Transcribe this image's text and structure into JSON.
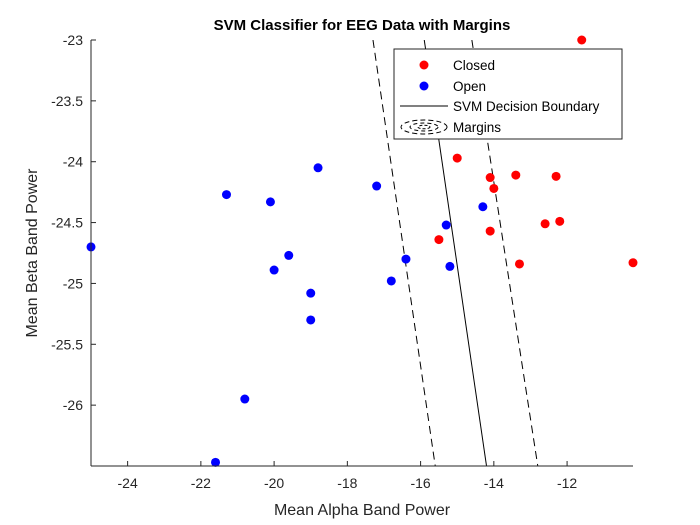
{
  "chart_data": {
    "type": "scatter",
    "title": "SVM Classifier for EEG Data with Margins",
    "xlabel": "Mean Alpha Band Power",
    "ylabel": "Mean Beta Band Power",
    "xlim": [
      -25,
      -10.2
    ],
    "ylim": [
      -26.5,
      -23
    ],
    "xticks": [
      -24,
      -22,
      -20,
      -18,
      -16,
      -14,
      -12
    ],
    "yticks": [
      -23,
      -23.5,
      -24,
      -24.5,
      -25,
      -25.5,
      -26
    ],
    "grid": false,
    "legend_position": "top-right",
    "series": [
      {
        "name": "Closed",
        "color": "#ff0000",
        "marker": "dot",
        "points": [
          [
            -11.6,
            -23.0
          ],
          [
            -15.0,
            -23.97
          ],
          [
            -14.1,
            -24.13
          ],
          [
            -14.0,
            -24.22
          ],
          [
            -13.4,
            -24.11
          ],
          [
            -12.3,
            -24.12
          ],
          [
            -12.2,
            -24.49
          ],
          [
            -12.6,
            -24.51
          ],
          [
            -14.1,
            -24.57
          ],
          [
            -15.5,
            -24.64
          ],
          [
            -13.3,
            -24.84
          ],
          [
            -10.2,
            -24.83
          ]
        ]
      },
      {
        "name": "Open",
        "color": "#0000ff",
        "marker": "dot",
        "points": [
          [
            -25.0,
            -24.7
          ],
          [
            -21.3,
            -24.27
          ],
          [
            -20.1,
            -24.33
          ],
          [
            -18.8,
            -24.05
          ],
          [
            -17.2,
            -24.2
          ],
          [
            -19.6,
            -24.77
          ],
          [
            -20.0,
            -24.89
          ],
          [
            -19.0,
            -25.08
          ],
          [
            -19.0,
            -25.3
          ],
          [
            -16.4,
            -24.8
          ],
          [
            -16.8,
            -24.98
          ],
          [
            -15.3,
            -24.52
          ],
          [
            -15.2,
            -24.86
          ],
          [
            -14.3,
            -24.37
          ],
          [
            -20.8,
            -25.95
          ],
          [
            -21.6,
            -26.47
          ]
        ]
      },
      {
        "name": "SVM Decision Boundary",
        "color": "#000000",
        "style": "solid",
        "points": [
          [
            -15.9,
            -23.0
          ],
          [
            -14.2,
            -26.5
          ]
        ]
      },
      {
        "name": "Margins",
        "color": "#000000",
        "style": "dashed",
        "lines": [
          [
            [
              -17.3,
              -23.0
            ],
            [
              -15.6,
              -26.5
            ]
          ],
          [
            [
              -14.6,
              -23.0
            ],
            [
              -12.8,
              -26.5
            ]
          ]
        ]
      }
    ]
  }
}
